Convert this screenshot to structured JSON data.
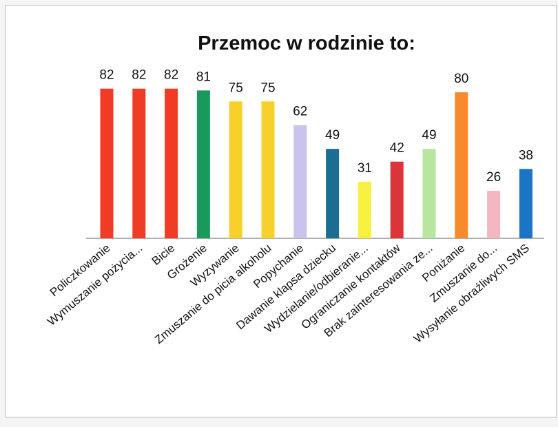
{
  "chart_data": {
    "type": "bar",
    "title": "Przemoc w rodzinie to:",
    "categories": [
      "Policzkowanie",
      "Wymuszanie pożycia...",
      "Bicie",
      "Grożenie",
      "Wyzywanie",
      "Zmuszanie do picia alkoholu",
      "Popychanie",
      "Dawanie klapsa dziecku",
      "Wydzielanie/odbieranie...",
      "Ograniczanie kontaktów",
      "Brak zainteresowania ze...",
      "Poniżanie",
      "Zmuszanie do...",
      "Wysyłanie obraźliwych SMS"
    ],
    "values": [
      82,
      82,
      82,
      81,
      75,
      75,
      62,
      49,
      31,
      42,
      49,
      80,
      26,
      38
    ],
    "colors": [
      "#f03c24",
      "#f03c24",
      "#f03c24",
      "#1a9a5a",
      "#f7d12a",
      "#f7d12a",
      "#c9c3ee",
      "#1a6e93",
      "#f7f040",
      "#d9353a",
      "#b8e6a0",
      "#f78a2a",
      "#f4b6c0",
      "#1e74c4"
    ]
  }
}
